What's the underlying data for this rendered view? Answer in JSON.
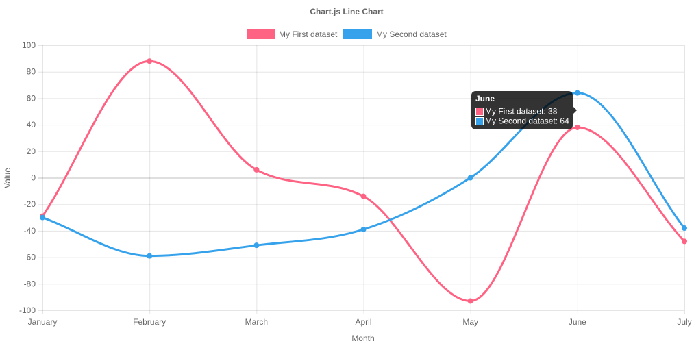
{
  "chart_data": {
    "type": "line",
    "title": "Chart.js Line Chart",
    "xlabel": "Month",
    "ylabel": "Value",
    "categories": [
      "January",
      "February",
      "March",
      "April",
      "May",
      "June",
      "July"
    ],
    "ylim": [
      -100,
      100
    ],
    "ytick_step": 20,
    "grid": true,
    "legend_position": "top",
    "series": [
      {
        "name": "My First dataset",
        "color": "#ff6384",
        "values": [
          -29,
          88,
          6,
          -14,
          -93,
          38,
          -48
        ]
      },
      {
        "name": "My Second dataset",
        "color": "#36a2eb",
        "values": [
          -30,
          -59,
          -51,
          -39,
          0,
          64,
          -38
        ]
      }
    ],
    "tooltip": {
      "title": "June",
      "lines": [
        "My First dataset: 38",
        "My Second dataset: 64"
      ]
    }
  }
}
